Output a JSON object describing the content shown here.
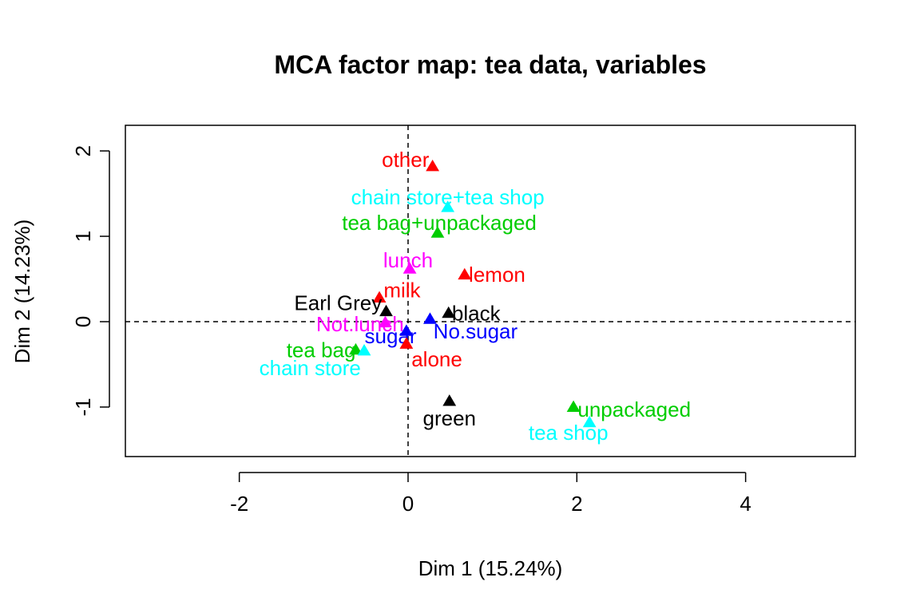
{
  "chart_data": {
    "type": "scatter",
    "title": "MCA factor map: tea data, variables",
    "xlabel": "Dim 1 (15.24%)",
    "ylabel": "Dim 2 (14.23%)",
    "xlim": [
      -3.35,
      5.3
    ],
    "ylim": [
      -1.58,
      2.3
    ],
    "xticks": [
      -2,
      0,
      2,
      4
    ],
    "yticks": [
      -1,
      0,
      1,
      2
    ],
    "reference_lines": {
      "x": 0,
      "y": 0,
      "style": "dashed"
    },
    "grid": false,
    "points": [
      {
        "label": "other",
        "x": 0.29,
        "y": 1.82,
        "color": "#ff0000",
        "anchor": "end",
        "dx": -0.04,
        "dy": 0.08
      },
      {
        "label": "chain store+tea shop",
        "x": 0.47,
        "y": 1.34,
        "color": "#00ffff",
        "anchor": "middle",
        "dx": 0.0,
        "dy": 0.12
      },
      {
        "label": "tea bag+unpackaged",
        "x": 0.35,
        "y": 1.04,
        "color": "#00cd00",
        "anchor": "middle",
        "dx": 0.02,
        "dy": 0.12
      },
      {
        "label": "lunch",
        "x": 0.02,
        "y": 0.62,
        "color": "#ff00ff",
        "anchor": "middle",
        "dx": -0.02,
        "dy": 0.1
      },
      {
        "label": "lemon",
        "x": 0.67,
        "y": 0.55,
        "color": "#ff0000",
        "anchor": "start",
        "dx": 0.05,
        "dy": 0.0
      },
      {
        "label": "milk",
        "x": -0.34,
        "y": 0.28,
        "color": "#ff0000",
        "anchor": "start",
        "dx": 0.05,
        "dy": 0.09
      },
      {
        "label": "Earl Grey",
        "x": -0.26,
        "y": 0.12,
        "color": "#000000",
        "anchor": "end",
        "dx": -0.05,
        "dy": 0.1
      },
      {
        "label": "black",
        "x": 0.48,
        "y": 0.1,
        "color": "#000000",
        "anchor": "start",
        "dx": 0.04,
        "dy": 0.0
      },
      {
        "label": "Not.lunch",
        "x": -0.27,
        "y": -0.01,
        "color": "#ff00ff",
        "anchor": "middle",
        "dx": -0.3,
        "dy": -0.02
      },
      {
        "label": "No.sugar",
        "x": 0.26,
        "y": 0.03,
        "color": "#0000ff",
        "anchor": "start",
        "dx": 0.04,
        "dy": -0.14
      },
      {
        "label": "sugar",
        "x": -0.02,
        "y": -0.11,
        "color": "#0000ff",
        "anchor": "end",
        "dx": 0.12,
        "dy": -0.06
      },
      {
        "label": "alone",
        "x": -0.02,
        "y": -0.26,
        "color": "#ff0000",
        "anchor": "start",
        "dx": 0.06,
        "dy": -0.18
      },
      {
        "label": "tea bag",
        "x": -0.62,
        "y": -0.33,
        "color": "#00cd00",
        "anchor": "end",
        "dx": 0.0,
        "dy": 0.0
      },
      {
        "label": "chain store",
        "x": -0.52,
        "y": -0.34,
        "color": "#00ffff",
        "anchor": "end",
        "dx": -0.04,
        "dy": -0.2
      },
      {
        "label": "green",
        "x": 0.49,
        "y": -0.93,
        "color": "#000000",
        "anchor": "middle",
        "dx": 0.0,
        "dy": -0.2
      },
      {
        "label": "unpackaged",
        "x": 1.96,
        "y": -1.0,
        "color": "#00cd00",
        "anchor": "start",
        "dx": 0.05,
        "dy": -0.03
      },
      {
        "label": "tea shop",
        "x": 2.15,
        "y": -1.18,
        "color": "#00ffff",
        "anchor": "middle",
        "dx": -0.25,
        "dy": -0.12
      }
    ]
  }
}
